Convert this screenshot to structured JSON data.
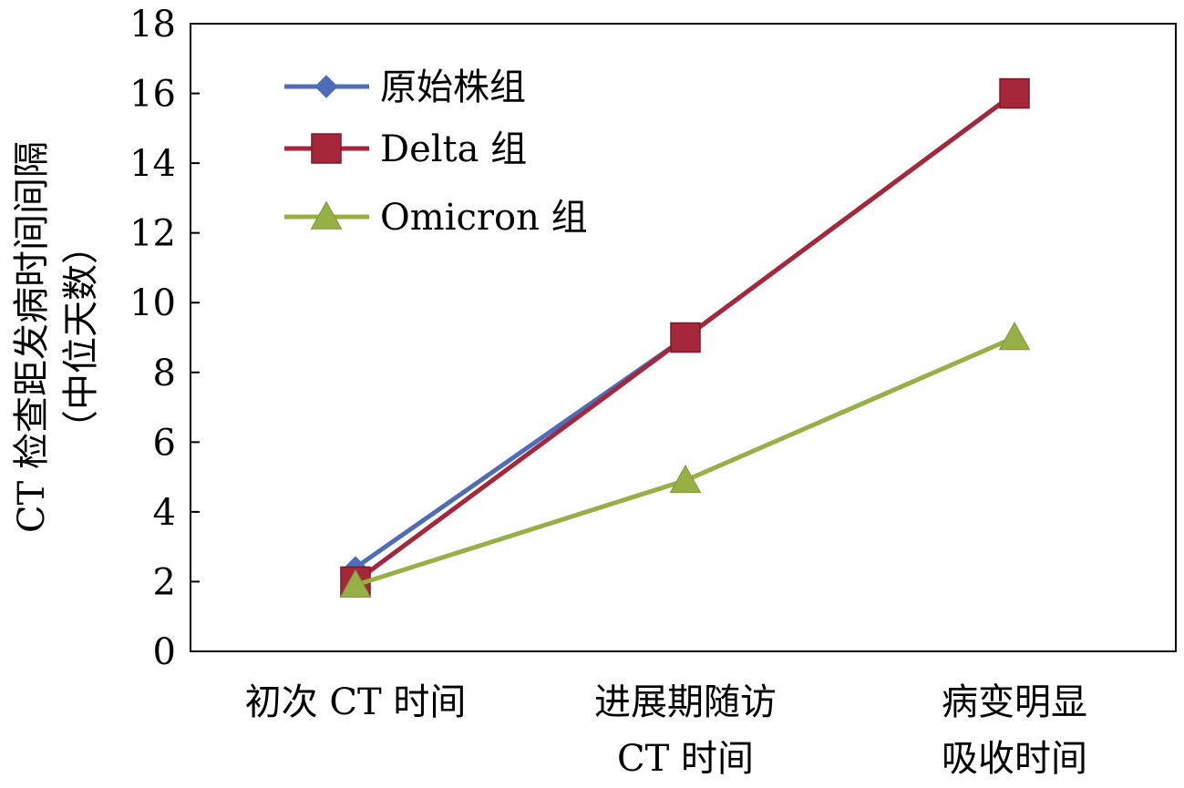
{
  "chart_data": {
    "type": "line",
    "categories": [
      [
        "初次 CT 时间"
      ],
      [
        "进展期随访",
        "CT 时间"
      ],
      [
        "病变明显",
        "吸收时间"
      ]
    ],
    "series": [
      {
        "name": "原始株组",
        "values": [
          2.4,
          9,
          16
        ],
        "color": "#4F6CB8",
        "marker": "diamond"
      },
      {
        "name": "Delta 组",
        "values": [
          2,
          9,
          16
        ],
        "color": "#A6263A",
        "marker": "square"
      },
      {
        "name": "Omicron 组",
        "values": [
          1.9,
          4.9,
          9
        ],
        "color": "#96B046",
        "marker": "triangle"
      }
    ],
    "ylabel": [
      "CT 检查距发病时间间隔",
      "（中位天数）"
    ],
    "ylim": [
      0,
      18
    ],
    "yticks": [
      0,
      2,
      4,
      6,
      8,
      10,
      12,
      14,
      16,
      18
    ],
    "legend_position": "top-left",
    "grid": false
  }
}
